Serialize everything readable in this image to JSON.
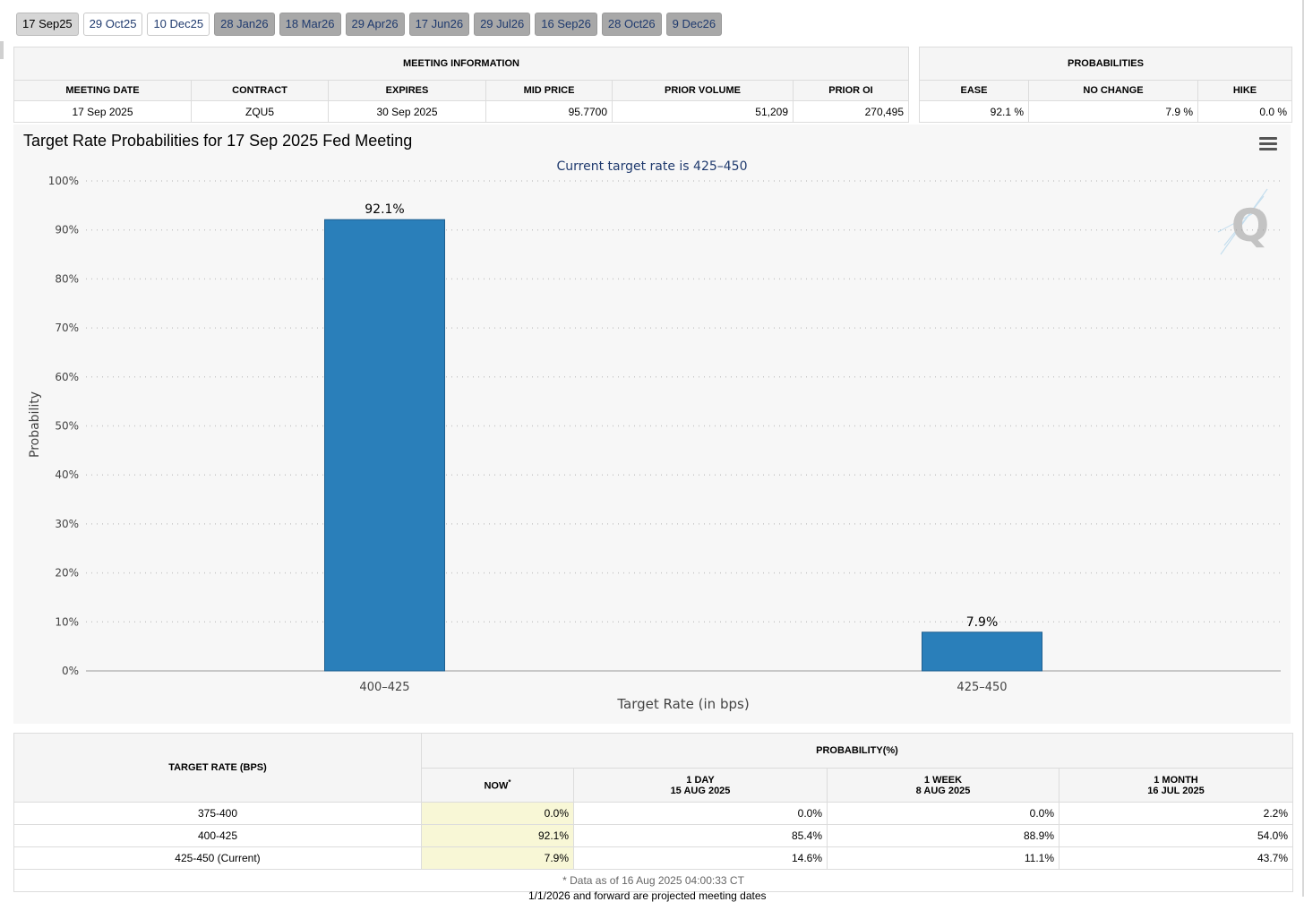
{
  "tabs": [
    "17 Sep25",
    "29 Oct25",
    "10 Dec25",
    "28 Jan26",
    "18 Mar26",
    "29 Apr26",
    "17 Jun26",
    "29 Jul26",
    "16 Sep26",
    "28 Oct26",
    "9 Dec26"
  ],
  "meeting_info": {
    "title": "MEETING INFORMATION",
    "headers": [
      "MEETING DATE",
      "CONTRACT",
      "EXPIRES",
      "MID PRICE",
      "PRIOR VOLUME",
      "PRIOR OI"
    ],
    "values": [
      "17 Sep 2025",
      "ZQU5",
      "30 Sep 2025",
      "95.7700",
      "51,209",
      "270,495"
    ]
  },
  "probabilities": {
    "title": "PROBABILITIES",
    "headers": [
      "EASE",
      "NO CHANGE",
      "HIKE"
    ],
    "values": [
      "92.1 %",
      "7.9 %",
      "0.0 %"
    ]
  },
  "chart_title": "Target Rate Probabilities for 17 Sep 2025 Fed Meeting",
  "menu_icon": "hamburger-icon",
  "chart_data": {
    "type": "bar",
    "subtitle": "Current target rate is 425–450",
    "categories": [
      "400–425",
      "425–450"
    ],
    "values": [
      92.1,
      7.9
    ],
    "data_labels": [
      "92.1%",
      "7.9%"
    ],
    "xlabel": "Target Rate (in bps)",
    "ylabel": "Probability",
    "ylim": [
      0,
      100
    ],
    "y_ticks": [
      "0%",
      "10%",
      "20%",
      "30%",
      "40%",
      "50%",
      "60%",
      "70%",
      "80%",
      "90%",
      "100%"
    ],
    "grid": true,
    "bar_color": "#2a7fba"
  },
  "prob_table": {
    "target_header": "TARGET RATE (BPS)",
    "prob_header": "PROBABILITY(%)",
    "now_header": "NOW",
    "now_mark": "*",
    "cols": [
      {
        "label": "1 DAY",
        "date": "15 AUG 2025"
      },
      {
        "label": "1 WEEK",
        "date": "8 AUG 2025"
      },
      {
        "label": "1 MONTH",
        "date": "16 JUL 2025"
      }
    ],
    "rows": [
      {
        "rate": "375-400",
        "now": "0.0%",
        "d1": "0.0%",
        "w1": "0.0%",
        "m1": "2.2%"
      },
      {
        "rate": "400-425",
        "now": "92.1%",
        "d1": "85.4%",
        "w1": "88.9%",
        "m1": "54.0%"
      },
      {
        "rate": "425-450 (Current)",
        "now": "7.9%",
        "d1": "14.6%",
        "w1": "11.1%",
        "m1": "43.7%"
      }
    ],
    "footnote": "* Data as of 16 Aug 2025 04:00:33 CT"
  },
  "bottom_note": "1/1/2026 and forward are projected meeting dates"
}
